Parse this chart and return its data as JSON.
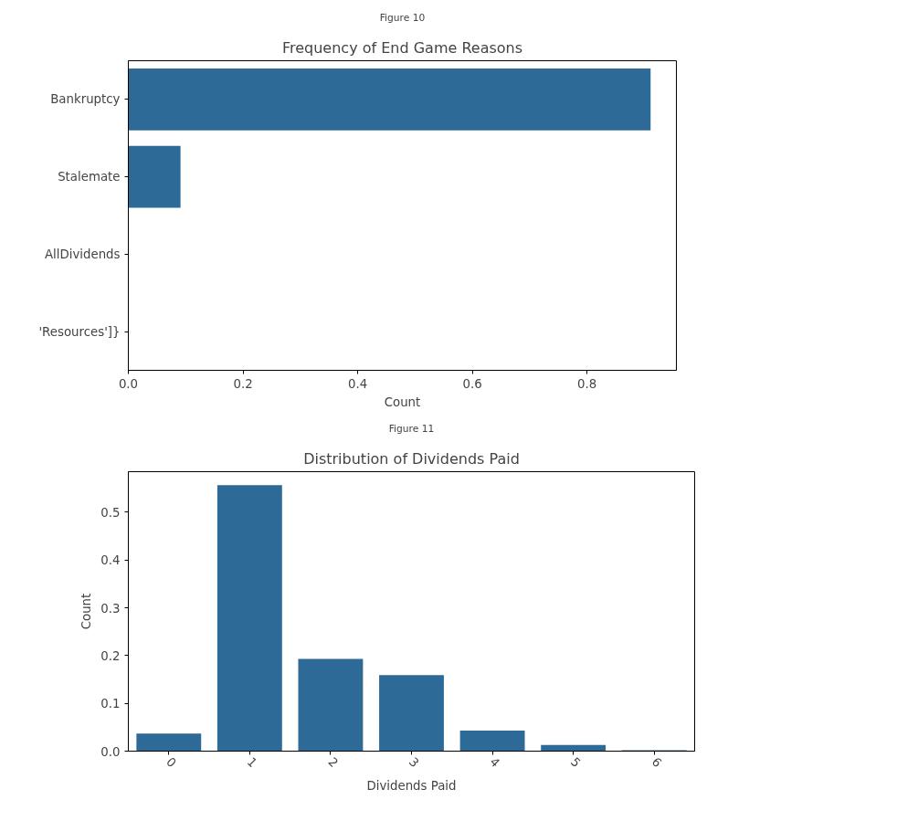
{
  "chart_data": [
    {
      "type": "bar",
      "orientation": "horizontal",
      "title": "Frequency of End Game Reasons",
      "xlabel": "Count",
      "annotations": [
        "Figure 10"
      ],
      "categories": [
        "Bankruptcy",
        "Stalemate",
        "AllDividends",
        "'Resources']}"
      ],
      "values": [
        0.911,
        0.091,
        0,
        0
      ],
      "color": "#2d6a98",
      "xlim": [
        0,
        0.956
      ],
      "xticks": [
        {
          "value": 0,
          "label": "0.0"
        },
        0.2,
        0.4,
        0.6,
        0.8
      ],
      "grid": false
    },
    {
      "type": "bar",
      "title": "Distribution of Dividends Paid",
      "xlabel": "Dividends Paid",
      "ylabel": "Count",
      "annotations": [
        "Figure 11"
      ],
      "categories": [
        "0",
        "1",
        "2",
        "3",
        "4",
        "5",
        "6"
      ],
      "values": [
        0.037,
        0.557,
        0.193,
        0.159,
        0.043,
        0.013,
        0.002
      ],
      "color": "#2d6a98",
      "ylim": [
        0,
        0.585
      ],
      "yticks": [
        {
          "value": 0,
          "label": "0.0"
        },
        0.1,
        0.2,
        0.3,
        0.4,
        0.5
      ],
      "grid": false
    }
  ]
}
